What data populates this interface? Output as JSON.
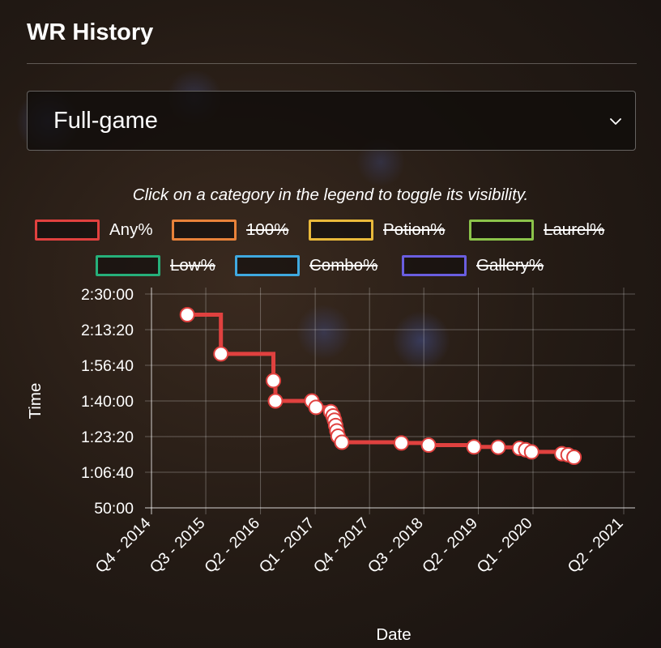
{
  "header": {
    "title": "WR History"
  },
  "category_select": {
    "selected": "Full-game"
  },
  "hint": "Click on a category in the legend to toggle its visibility.",
  "legend": [
    {
      "label": "Any%",
      "color": "#e0413f",
      "hidden": false
    },
    {
      "label": "100%",
      "color": "#e8823a",
      "hidden": true
    },
    {
      "label": "Potion%",
      "color": "#e9b93b",
      "hidden": true
    },
    {
      "label": "Laurel%",
      "color": "#8bc34a",
      "hidden": true
    },
    {
      "label": "Low%",
      "color": "#26b07a",
      "hidden": true
    },
    {
      "label": "Combo%",
      "color": "#3fa9e0",
      "hidden": true
    },
    {
      "label": "Gallery%",
      "color": "#6a5ee0",
      "hidden": true
    }
  ],
  "chart_data": {
    "type": "line",
    "stepped": true,
    "xlabel": "Date",
    "ylabel": "Time",
    "x_ticks": [
      "Q4 - 2014",
      "Q3 - 2015",
      "Q2 - 2016",
      "Q1 - 2017",
      "Q4 - 2017",
      "Q3 - 2018",
      "Q2 - 2019",
      "Q1 - 2020",
      "Q2 - 2021"
    ],
    "y_ticks": [
      "2:30:00",
      "2:13:20",
      "1:56:40",
      "1:40:00",
      "1:23:20",
      "1:06:40",
      "50:00"
    ],
    "ylim": [
      "50:00",
      "2:30:00"
    ],
    "grid": true,
    "series": [
      {
        "name": "Any%",
        "color": "#e0413f",
        "points": [
          {
            "date": "2015-03-30",
            "time": "2:20:20"
          },
          {
            "date": "2015-09-15",
            "time": "2:02:00"
          },
          {
            "date": "2016-06-05",
            "time": "1:49:30"
          },
          {
            "date": "2016-06-15",
            "time": "1:40:00"
          },
          {
            "date": "2016-12-15",
            "time": "1:40:00"
          },
          {
            "date": "2017-01-05",
            "time": "1:37:00"
          },
          {
            "date": "2017-03-20",
            "time": "1:35:00"
          },
          {
            "date": "2017-04-01",
            "time": "1:33:00"
          },
          {
            "date": "2017-04-08",
            "time": "1:31:00"
          },
          {
            "date": "2017-04-14",
            "time": "1:28:30"
          },
          {
            "date": "2017-04-20",
            "time": "1:26:00"
          },
          {
            "date": "2017-04-26",
            "time": "1:23:30"
          },
          {
            "date": "2017-05-15",
            "time": "1:20:40"
          },
          {
            "date": "2018-03-10",
            "time": "1:20:20"
          },
          {
            "date": "2018-07-25",
            "time": "1:19:20"
          },
          {
            "date": "2019-03-10",
            "time": "1:18:30"
          },
          {
            "date": "2019-07-10",
            "time": "1:18:20"
          },
          {
            "date": "2019-10-25",
            "time": "1:17:50"
          },
          {
            "date": "2019-11-25",
            "time": "1:17:10"
          },
          {
            "date": "2019-12-25",
            "time": "1:16:10"
          },
          {
            "date": "2020-05-25",
            "time": "1:15:20"
          },
          {
            "date": "2020-06-25",
            "time": "1:14:50"
          },
          {
            "date": "2020-07-25",
            "time": "1:13:40"
          }
        ]
      }
    ]
  }
}
